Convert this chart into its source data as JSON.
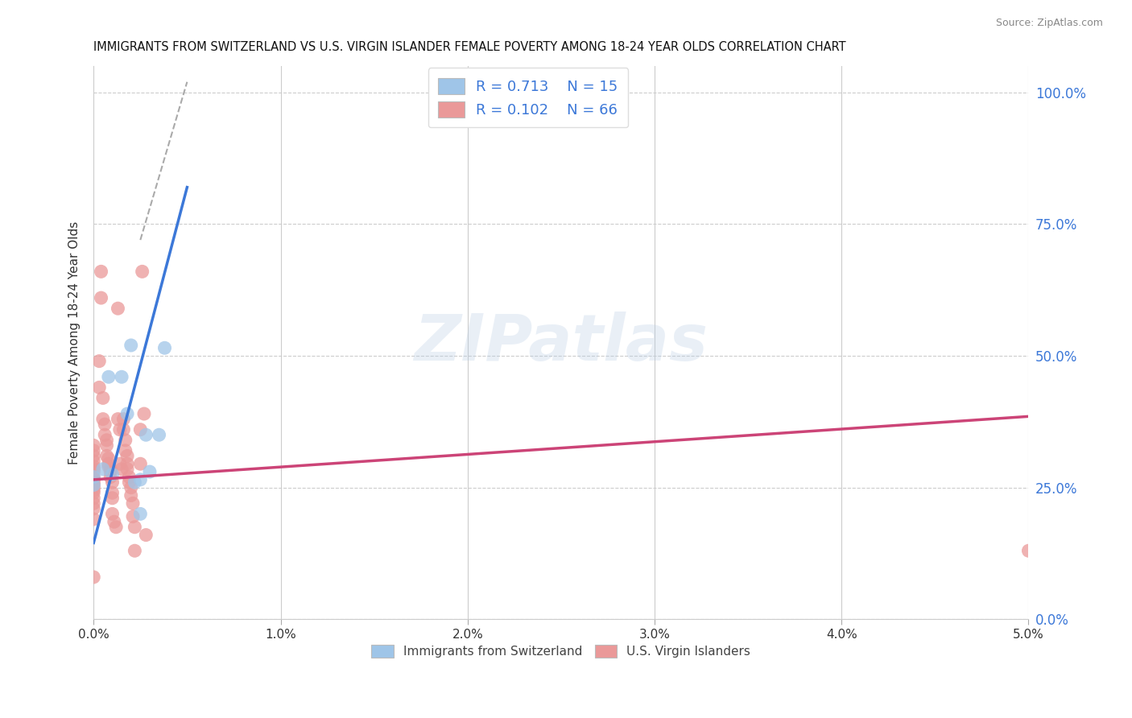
{
  "title": "IMMIGRANTS FROM SWITZERLAND VS U.S. VIRGIN ISLANDER FEMALE POVERTY AMONG 18-24 YEAR OLDS CORRELATION CHART",
  "source": "Source: ZipAtlas.com",
  "ylabel": "Female Poverty Among 18-24 Year Olds",
  "ylabel_right_ticks": [
    "0.0%",
    "25.0%",
    "50.0%",
    "75.0%",
    "100.0%"
  ],
  "ylabel_right_vals": [
    0.0,
    0.25,
    0.5,
    0.75,
    1.0
  ],
  "x_lim": [
    0.0,
    0.05
  ],
  "y_lim": [
    0.0,
    1.05
  ],
  "watermark": "ZIPatlas",
  "blue_color": "#9fc5e8",
  "pink_color": "#ea9999",
  "blue_line_color": "#3c78d8",
  "pink_line_color": "#cc4477",
  "dashed_line_color": "#aaaaaa",
  "blue_scatter": [
    [
      0.0,
      0.27
    ],
    [
      0.0,
      0.255
    ],
    [
      0.0005,
      0.285
    ],
    [
      0.0008,
      0.46
    ],
    [
      0.001,
      0.275
    ],
    [
      0.0015,
      0.46
    ],
    [
      0.0018,
      0.39
    ],
    [
      0.002,
      0.52
    ],
    [
      0.0022,
      0.26
    ],
    [
      0.0025,
      0.265
    ],
    [
      0.0025,
      0.2
    ],
    [
      0.0028,
      0.35
    ],
    [
      0.003,
      0.28
    ],
    [
      0.0035,
      0.35
    ],
    [
      0.0038,
      0.515
    ]
  ],
  "pink_scatter": [
    [
      0.0,
      0.33
    ],
    [
      0.0,
      0.32
    ],
    [
      0.0,
      0.31
    ],
    [
      0.0,
      0.3
    ],
    [
      0.0,
      0.29
    ],
    [
      0.0,
      0.285
    ],
    [
      0.0,
      0.28
    ],
    [
      0.0,
      0.27
    ],
    [
      0.0,
      0.265
    ],
    [
      0.0,
      0.26
    ],
    [
      0.0,
      0.255
    ],
    [
      0.0,
      0.25
    ],
    [
      0.0,
      0.245
    ],
    [
      0.0,
      0.24
    ],
    [
      0.0,
      0.23
    ],
    [
      0.0,
      0.22
    ],
    [
      0.0,
      0.21
    ],
    [
      0.0,
      0.19
    ],
    [
      0.0,
      0.08
    ],
    [
      0.0003,
      0.49
    ],
    [
      0.0003,
      0.44
    ],
    [
      0.0004,
      0.66
    ],
    [
      0.0004,
      0.61
    ],
    [
      0.0005,
      0.42
    ],
    [
      0.0005,
      0.38
    ],
    [
      0.0006,
      0.37
    ],
    [
      0.0006,
      0.35
    ],
    [
      0.0007,
      0.34
    ],
    [
      0.0007,
      0.33
    ],
    [
      0.0007,
      0.31
    ],
    [
      0.0008,
      0.305
    ],
    [
      0.0008,
      0.295
    ],
    [
      0.0008,
      0.29
    ],
    [
      0.0009,
      0.285
    ],
    [
      0.0009,
      0.28
    ],
    [
      0.0009,
      0.27
    ],
    [
      0.001,
      0.26
    ],
    [
      0.001,
      0.24
    ],
    [
      0.001,
      0.23
    ],
    [
      0.001,
      0.2
    ],
    [
      0.0011,
      0.185
    ],
    [
      0.0012,
      0.175
    ],
    [
      0.0013,
      0.59
    ],
    [
      0.0013,
      0.38
    ],
    [
      0.0014,
      0.36
    ],
    [
      0.0014,
      0.295
    ],
    [
      0.0015,
      0.285
    ],
    [
      0.0016,
      0.38
    ],
    [
      0.0016,
      0.36
    ],
    [
      0.0017,
      0.34
    ],
    [
      0.0017,
      0.32
    ],
    [
      0.0018,
      0.31
    ],
    [
      0.0018,
      0.295
    ],
    [
      0.0018,
      0.285
    ],
    [
      0.0019,
      0.27
    ],
    [
      0.0019,
      0.26
    ],
    [
      0.002,
      0.25
    ],
    [
      0.002,
      0.235
    ],
    [
      0.0021,
      0.22
    ],
    [
      0.0021,
      0.195
    ],
    [
      0.0022,
      0.175
    ],
    [
      0.0022,
      0.13
    ],
    [
      0.0025,
      0.36
    ],
    [
      0.0025,
      0.295
    ],
    [
      0.0026,
      0.66
    ],
    [
      0.0027,
      0.39
    ],
    [
      0.0028,
      0.16
    ],
    [
      0.05,
      0.13
    ]
  ],
  "blue_trend_x": [
    0.0,
    0.005
  ],
  "blue_trend_y": [
    0.145,
    0.82
  ],
  "pink_trend_x": [
    0.0,
    0.05
  ],
  "pink_trend_y": [
    0.265,
    0.385
  ],
  "diag_trend_x": [
    0.0025,
    0.005
  ],
  "diag_trend_y": [
    0.72,
    1.02
  ]
}
